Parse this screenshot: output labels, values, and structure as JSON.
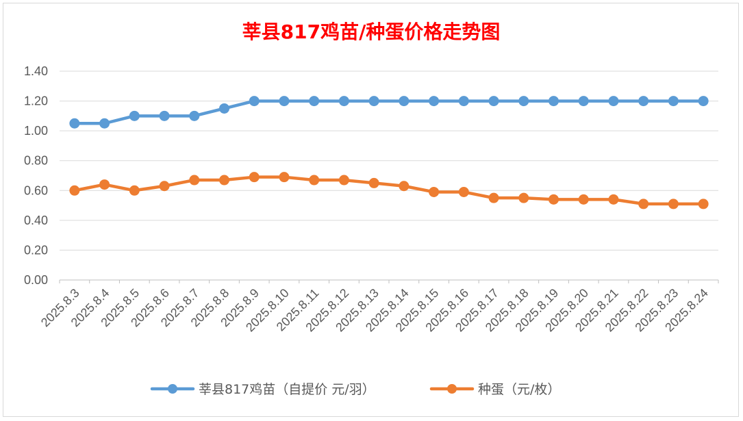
{
  "chart_data": {
    "type": "line",
    "title": "莘县817鸡苗/种蛋价格走势图",
    "xlabel": "",
    "ylabel": "",
    "categories": [
      "2025.8.3",
      "2025.8.4",
      "2025.8.5",
      "2025.8.6",
      "2025.8.7",
      "2025.8.8",
      "2025.8.9",
      "2025.8.10",
      "2025.8.11",
      "2025.8.12",
      "2025.8.13",
      "2025.8.14",
      "2025.8.15",
      "2025.8.16",
      "2025.8.17",
      "2025.8.18",
      "2025.8.19",
      "2025.8.20",
      "2025.8.21",
      "2025.8.22",
      "2025.8.23",
      "2025.8.24"
    ],
    "ylim": [
      0,
      1.4
    ],
    "yticks": [
      "0.00",
      "0.20",
      "0.40",
      "0.60",
      "0.80",
      "1.00",
      "1.20",
      "1.40"
    ],
    "grid": true,
    "legend_position": "bottom",
    "series": [
      {
        "name": "莘县817鸡苗（自提价 元/羽）",
        "color": "#5b9bd5",
        "values": [
          1.05,
          1.05,
          1.1,
          1.1,
          1.1,
          1.15,
          1.2,
          1.2,
          1.2,
          1.2,
          1.2,
          1.2,
          1.2,
          1.2,
          1.2,
          1.2,
          1.2,
          1.2,
          1.2,
          1.2,
          1.2,
          1.2
        ]
      },
      {
        "name": "种蛋（元/枚）",
        "color": "#ed7d31",
        "values": [
          0.6,
          0.64,
          0.6,
          0.63,
          0.67,
          0.67,
          0.69,
          0.69,
          0.67,
          0.67,
          0.65,
          0.63,
          0.59,
          0.59,
          0.55,
          0.55,
          0.54,
          0.54,
          0.54,
          0.51,
          0.51,
          0.51
        ]
      }
    ]
  }
}
